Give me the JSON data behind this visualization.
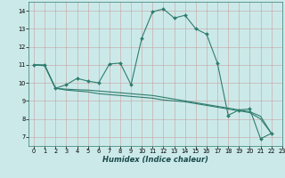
{
  "xlabel": "Humidex (Indice chaleur)",
  "bg_color": "#cce9e9",
  "line_color": "#2e7d6e",
  "grid_color": "#b0c8c8",
  "series1_x": [
    0,
    1,
    2,
    3,
    4,
    5,
    6,
    7,
    8,
    9,
    10,
    11,
    12,
    13,
    14,
    15,
    16,
    17,
    18,
    19,
    20,
    21,
    22
  ],
  "series1_y": [
    11.0,
    11.0,
    9.7,
    9.9,
    10.25,
    10.1,
    10.0,
    11.05,
    11.1,
    9.9,
    12.5,
    13.95,
    14.1,
    13.6,
    13.75,
    13.0,
    12.7,
    11.1,
    8.2,
    8.5,
    8.55,
    6.9,
    7.2
  ],
  "line2_x": [
    0,
    1,
    2,
    3,
    4,
    5,
    6,
    7,
    8,
    9,
    10,
    11,
    12,
    13,
    14,
    15,
    16,
    17,
    18,
    19,
    20,
    21,
    22
  ],
  "line2_y": [
    11.0,
    10.95,
    9.7,
    9.6,
    9.55,
    9.5,
    9.4,
    9.35,
    9.3,
    9.25,
    9.2,
    9.15,
    9.05,
    9.0,
    8.95,
    8.85,
    8.75,
    8.65,
    8.55,
    8.45,
    8.35,
    8.0,
    7.2
  ],
  "line3_x": [
    0,
    1,
    2,
    3,
    4,
    5,
    6,
    7,
    8,
    9,
    10,
    11,
    12,
    13,
    14,
    15,
    16,
    17,
    18,
    19,
    20,
    21,
    22
  ],
  "line3_y": [
    11.0,
    10.97,
    9.7,
    9.65,
    9.62,
    9.6,
    9.55,
    9.5,
    9.45,
    9.4,
    9.35,
    9.3,
    9.2,
    9.1,
    9.0,
    8.9,
    8.8,
    8.7,
    8.6,
    8.5,
    8.4,
    8.15,
    7.2
  ],
  "xlim": [
    -0.5,
    23
  ],
  "ylim": [
    6.5,
    14.5
  ],
  "xticks": [
    0,
    1,
    2,
    3,
    4,
    5,
    6,
    7,
    8,
    9,
    10,
    11,
    12,
    13,
    14,
    15,
    16,
    17,
    18,
    19,
    20,
    21,
    22,
    23
  ],
  "yticks": [
    7,
    8,
    9,
    10,
    11,
    12,
    13,
    14
  ]
}
